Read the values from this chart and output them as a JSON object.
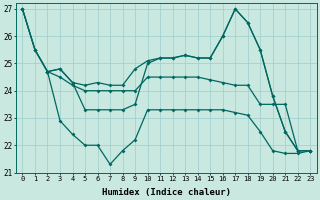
{
  "xlabel": "Humidex (Indice chaleur)",
  "xlim": [
    -0.5,
    23.5
  ],
  "ylim": [
    21,
    27.2
  ],
  "yticks": [
    21,
    22,
    23,
    24,
    25,
    26,
    27
  ],
  "xticks": [
    0,
    1,
    2,
    3,
    4,
    5,
    6,
    7,
    8,
    9,
    10,
    11,
    12,
    13,
    14,
    15,
    16,
    17,
    18,
    19,
    20,
    21,
    22,
    23
  ],
  "background_color": "#c8e8e0",
  "grid_color": "#9ecece",
  "line_color": "#006860",
  "line1_x": [
    0,
    1,
    2,
    3,
    4,
    5,
    6,
    7,
    8,
    9,
    10,
    11,
    12,
    13,
    14,
    15,
    16,
    17,
    18,
    19,
    20,
    21,
    22,
    23
  ],
  "line1_y": [
    27.0,
    25.5,
    24.7,
    24.8,
    24.3,
    24.2,
    24.3,
    24.2,
    24.2,
    24.8,
    25.1,
    25.2,
    25.2,
    25.3,
    25.2,
    25.2,
    26.0,
    27.0,
    26.5,
    25.5,
    23.8,
    22.5,
    21.8,
    21.8
  ],
  "line2_x": [
    0,
    1,
    2,
    3,
    4,
    5,
    6,
    7,
    8,
    9,
    10,
    11,
    12,
    13,
    14,
    15,
    16,
    17,
    18,
    19,
    20,
    21,
    22,
    23
  ],
  "line2_y": [
    27.0,
    25.5,
    24.7,
    24.5,
    24.2,
    24.0,
    24.0,
    24.0,
    24.0,
    24.0,
    24.5,
    24.5,
    24.5,
    24.5,
    24.5,
    24.4,
    24.3,
    24.2,
    24.2,
    23.5,
    23.5,
    23.5,
    21.8,
    21.8
  ],
  "line3_x": [
    0,
    1,
    2,
    3,
    4,
    5,
    6,
    7,
    8,
    9,
    10,
    11,
    12,
    13,
    14,
    15,
    16,
    17,
    18,
    19,
    20,
    21,
    22,
    23
  ],
  "line3_y": [
    27.0,
    25.5,
    24.7,
    24.8,
    24.3,
    23.3,
    23.3,
    23.3,
    23.3,
    23.5,
    25.0,
    25.2,
    25.2,
    25.3,
    25.2,
    25.2,
    26.0,
    27.0,
    26.5,
    25.5,
    23.8,
    22.5,
    21.8,
    21.8
  ],
  "line4_x": [
    2,
    3,
    4,
    5,
    6,
    7,
    8,
    9,
    10,
    11,
    12,
    13,
    14,
    15,
    16,
    17,
    18,
    19,
    20,
    21,
    22,
    23
  ],
  "line4_y": [
    24.7,
    22.9,
    22.4,
    22.0,
    22.0,
    21.3,
    21.8,
    22.2,
    23.3,
    23.3,
    23.3,
    23.3,
    23.3,
    23.3,
    23.3,
    23.2,
    23.1,
    22.5,
    21.8,
    21.7,
    21.7,
    21.8
  ]
}
